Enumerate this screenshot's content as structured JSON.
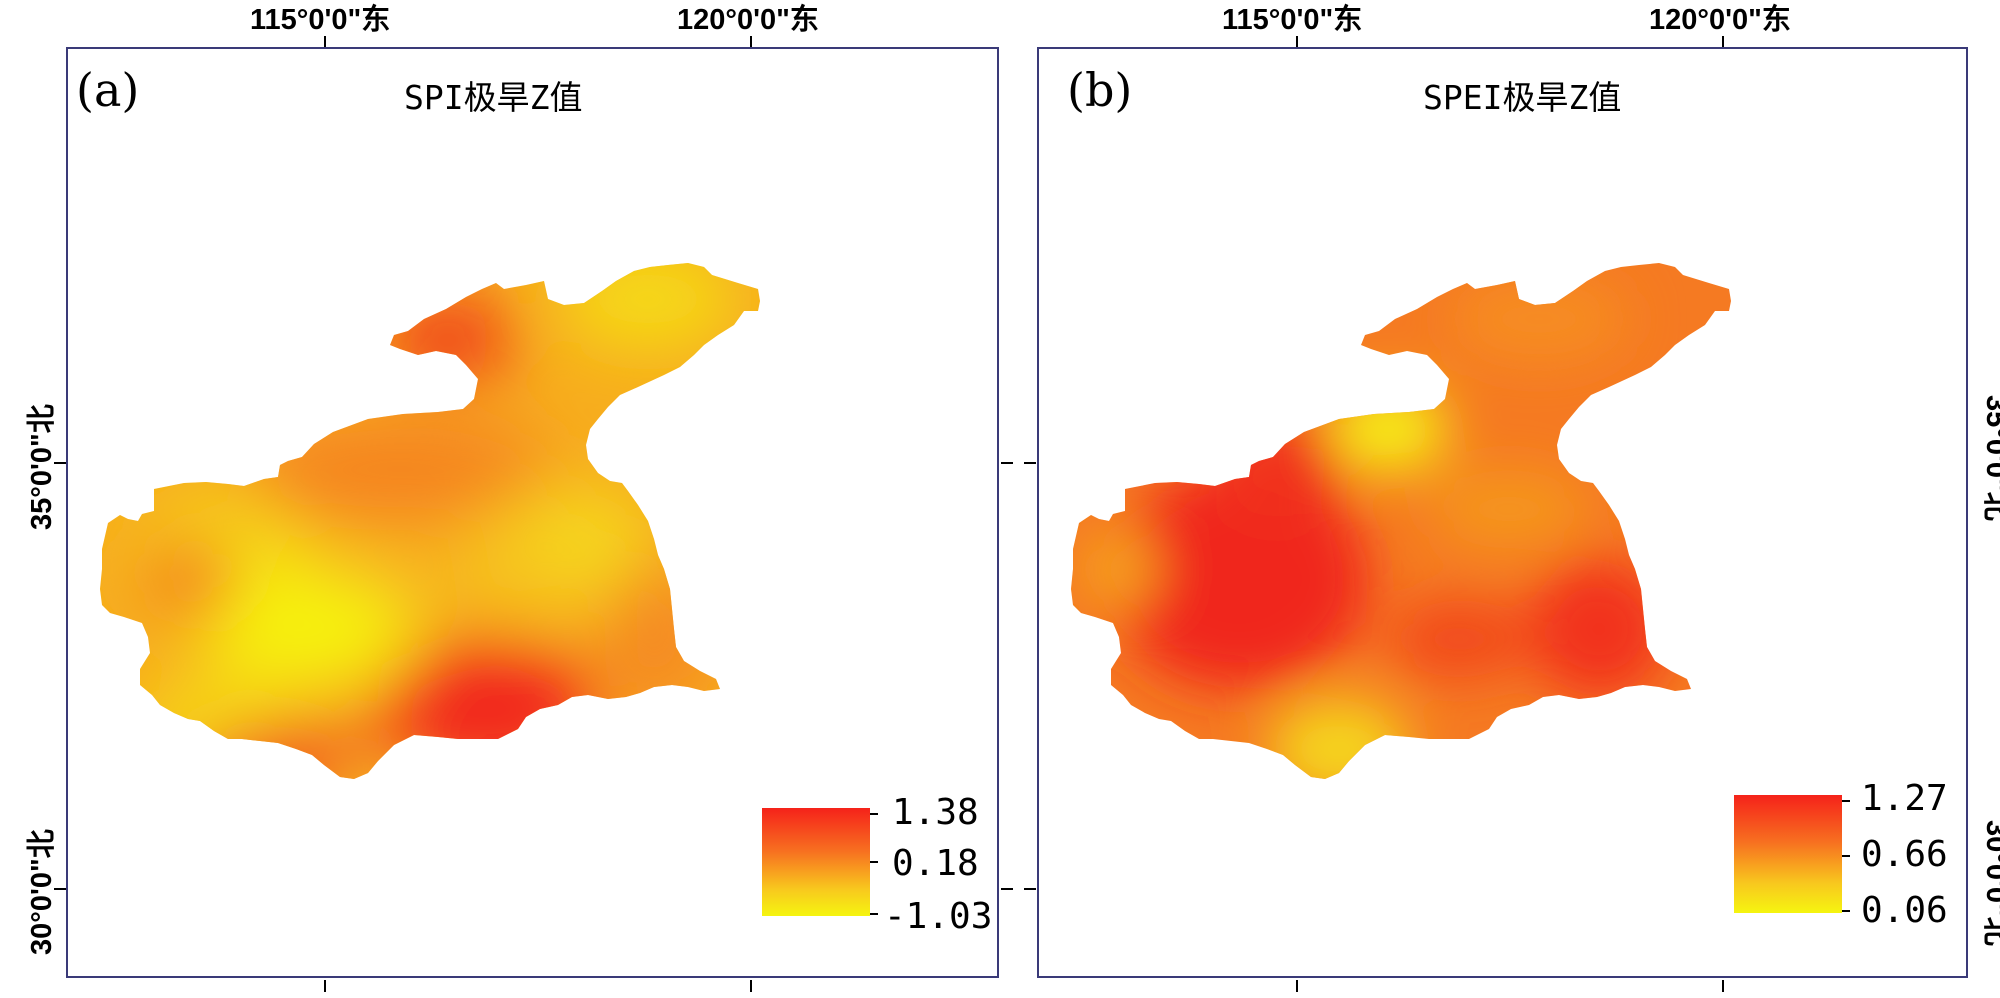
{
  "panels": [
    {
      "label": "(a)",
      "title": "SPI极旱Z值",
      "legend": {
        "max": "1.38",
        "mid": "0.18",
        "min": "-1.03"
      }
    },
    {
      "label": "(b)",
      "title": "SPEI极旱Z值",
      "legend": {
        "max": "1.27",
        "mid": "0.66",
        "min": "0.06"
      }
    }
  ],
  "axes": {
    "lon_labels": [
      "115°0'0\"东",
      "120°0'0\"东"
    ],
    "lat_labels": [
      "35°0'0\"北",
      "30°0'0\"北"
    ]
  },
  "colors": {
    "high": "#f5221a",
    "mid": "#f77020",
    "low": "#f5f510",
    "frame": "#3a3a78"
  }
}
